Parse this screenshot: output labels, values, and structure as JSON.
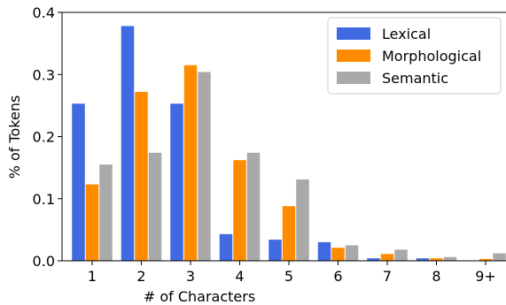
{
  "chart_data": {
    "type": "bar",
    "title": "",
    "xlabel": "# of Characters",
    "ylabel": "% of Tokens",
    "categories": [
      "1",
      "2",
      "3",
      "4",
      "5",
      "6",
      "7",
      "8",
      "9+"
    ],
    "ylim": [
      0,
      0.4
    ],
    "yticks": [
      "0.0",
      "0.1",
      "0.2",
      "0.3",
      "0.4"
    ],
    "legend_position": "top-right",
    "grid": false,
    "series": [
      {
        "name": "Lexical",
        "color": "#4169e1",
        "values": [
          0.253,
          0.378,
          0.253,
          0.043,
          0.034,
          0.03,
          0.004,
          0.004,
          0.0
        ]
      },
      {
        "name": "Morphological",
        "color": "#ff8c00",
        "values": [
          0.123,
          0.272,
          0.315,
          0.162,
          0.088,
          0.021,
          0.011,
          0.004,
          0.003
        ]
      },
      {
        "name": "Semantic",
        "color": "#a9a9a9",
        "values": [
          0.155,
          0.174,
          0.304,
          0.174,
          0.131,
          0.025,
          0.018,
          0.006,
          0.012
        ]
      }
    ]
  }
}
